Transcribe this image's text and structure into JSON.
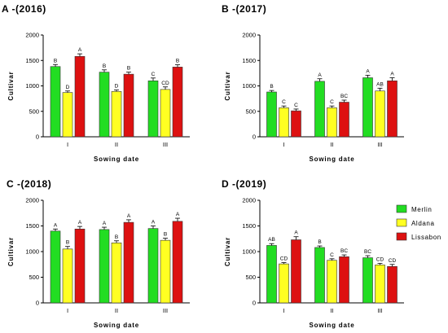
{
  "chart_data": [
    {
      "type": "bar",
      "title": "A -(2016)",
      "xlabel": "Sowing date",
      "ylabel": "Cultivar",
      "ylim": [
        0,
        2000
      ],
      "yticks": [
        "0",
        "500",
        "1000",
        "1500",
        "2000"
      ],
      "categories": [
        "I",
        "II",
        "III"
      ],
      "series": [
        {
          "values": [
            1380,
            1270,
            1100
          ],
          "errors": [
            40,
            45,
            55
          ],
          "letters": [
            "B",
            "B",
            "C"
          ]
        },
        {
          "values": [
            870,
            890,
            930
          ],
          "errors": [
            30,
            30,
            50
          ],
          "letters": [
            "D",
            "D",
            "CD"
          ]
        },
        {
          "values": [
            1580,
            1230,
            1370
          ],
          "errors": [
            50,
            40,
            45
          ],
          "letters": [
            "A",
            "B",
            "B"
          ]
        }
      ]
    },
    {
      "type": "bar",
      "title": "B -(2017)",
      "xlabel": "Sowing date",
      "ylabel": "Cultivar",
      "ylim": [
        0,
        2000
      ],
      "yticks": [
        "0",
        "500",
        "1000",
        "1500",
        "2000"
      ],
      "categories": [
        "I",
        "II",
        "III"
      ],
      "series": [
        {
          "values": [
            880,
            1090,
            1160
          ],
          "errors": [
            30,
            50,
            50
          ],
          "letters": [
            "B",
            "A",
            "A"
          ]
        },
        {
          "values": [
            570,
            570,
            900
          ],
          "errors": [
            35,
            35,
            55
          ],
          "letters": [
            "C",
            "C",
            "AB"
          ]
        },
        {
          "values": [
            510,
            680,
            1100
          ],
          "errors": [
            35,
            40,
            60
          ],
          "letters": [
            "C",
            "BC",
            "A"
          ]
        }
      ]
    },
    {
      "type": "bar",
      "title": "C -(2018)",
      "xlabel": "Sowing date",
      "ylabel": "Cultivar",
      "ylim": [
        0,
        2000
      ],
      "yticks": [
        "0",
        "500",
        "1000",
        "1500",
        "2000"
      ],
      "categories": [
        "I",
        "II",
        "III"
      ],
      "series": [
        {
          "values": [
            1400,
            1430,
            1450
          ],
          "errors": [
            40,
            45,
            50
          ],
          "letters": [
            "A",
            "A",
            "A"
          ]
        },
        {
          "values": [
            1050,
            1170,
            1220
          ],
          "errors": [
            50,
            40,
            40
          ],
          "letters": [
            "B",
            "B",
            "B"
          ]
        },
        {
          "values": [
            1440,
            1570,
            1590
          ],
          "errors": [
            50,
            50,
            60
          ],
          "letters": [
            "A",
            "A",
            "A"
          ]
        }
      ]
    },
    {
      "type": "bar",
      "title": "D -(2019)",
      "xlabel": "Sowing date",
      "ylabel": "Cultivar",
      "ylim": [
        0,
        2000
      ],
      "yticks": [
        "0",
        "500",
        "1000",
        "1500",
        "2000"
      ],
      "categories": [
        "I",
        "II",
        "III"
      ],
      "series": [
        {
          "values": [
            1120,
            1080,
            880
          ],
          "errors": [
            35,
            30,
            40
          ],
          "letters": [
            "AB",
            "B",
            "BC"
          ]
        },
        {
          "values": [
            760,
            830,
            740
          ],
          "errors": [
            25,
            30,
            30
          ],
          "letters": [
            "CD",
            "C",
            "CD"
          ]
        },
        {
          "values": [
            1230,
            900,
            710
          ],
          "errors": [
            60,
            35,
            40
          ],
          "letters": [
            "A",
            "BC",
            "CD"
          ]
        }
      ]
    }
  ],
  "legend": {
    "position": "right",
    "items": [
      {
        "label": "Merlin",
        "color": "#22dd22"
      },
      {
        "label": "Aldana",
        "color": "#ffff22"
      },
      {
        "label": "Lissabon",
        "color": "#dd1111"
      }
    ]
  },
  "colors": {
    "bar_outline": "#333333",
    "axis": "#000000"
  }
}
